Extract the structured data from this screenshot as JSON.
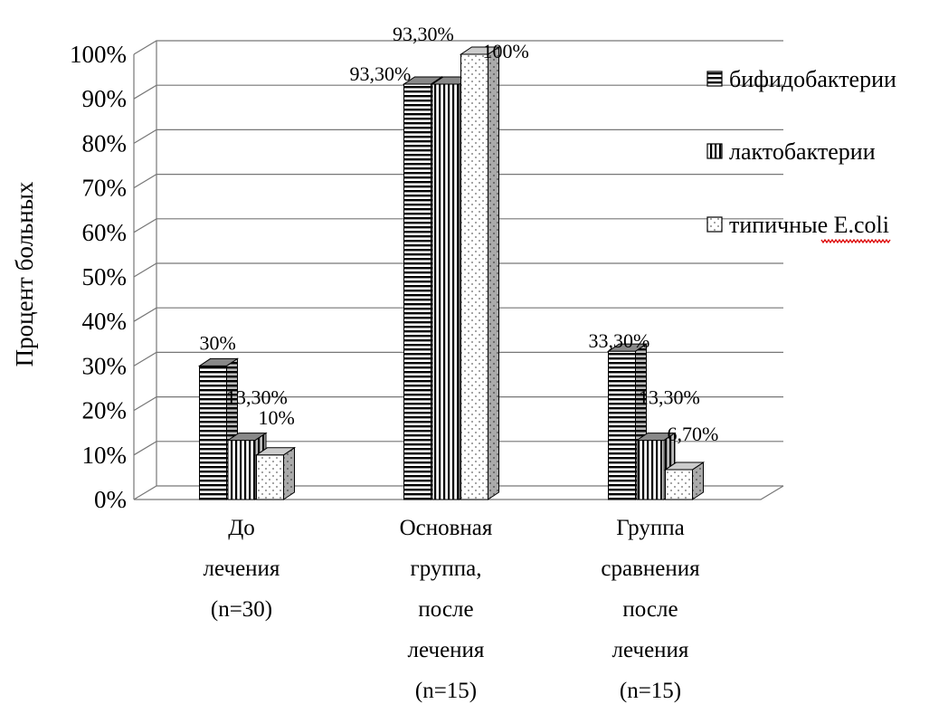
{
  "chart_data": {
    "type": "bar",
    "style": "3d-clustered",
    "title": "",
    "ylabel": "Процент больных",
    "xlabel": "",
    "ylim": [
      0,
      100
    ],
    "ytick_step": 10,
    "ytick_labels": [
      "0%",
      "10%",
      "20%",
      "30%",
      "40%",
      "50%",
      "60%",
      "70%",
      "80%",
      "90%",
      "100%"
    ],
    "grid": true,
    "legend_position": "right",
    "categories": [
      [
        "До",
        "лечения",
        "(n=30)"
      ],
      [
        "Основная",
        "группа,",
        "после",
        "лечения",
        "(n=15)"
      ],
      [
        "Группа",
        "сравнения",
        "после",
        "лечения",
        "(n=15)"
      ]
    ],
    "series": [
      {
        "name": "бифидобактерии",
        "pattern": "horizontal-stripes",
        "values": [
          30,
          93.3,
          33.3
        ],
        "labels": [
          "30%",
          "93,30%",
          "33,30%"
        ]
      },
      {
        "name": "лактобактерии",
        "pattern": "vertical-stripes",
        "values": [
          13.3,
          93.3,
          13.3
        ],
        "labels": [
          "13,30%",
          "93,30%",
          "13,30%"
        ]
      },
      {
        "name": "типичные E.coli",
        "pattern": "dots",
        "values": [
          10,
          100,
          6.7
        ],
        "labels": [
          "10%",
          "100%",
          "6,70%"
        ]
      }
    ]
  }
}
